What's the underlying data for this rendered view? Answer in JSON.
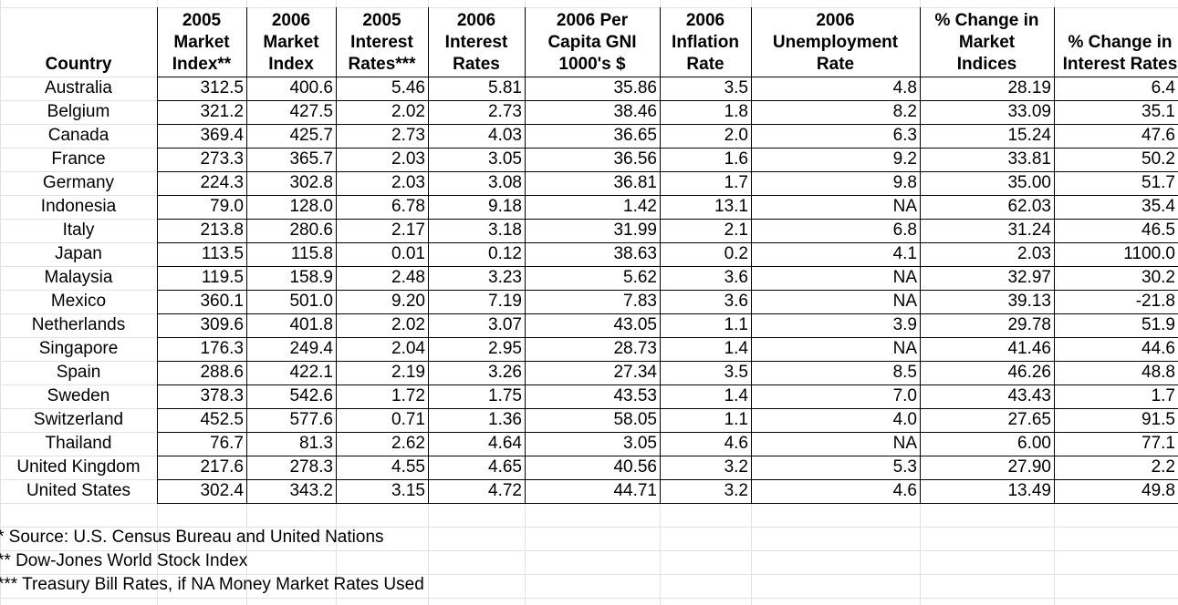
{
  "table": {
    "headers": [
      [
        "Country"
      ],
      [
        "2005",
        "Market",
        "Index**"
      ],
      [
        "2006",
        "Market",
        "Index"
      ],
      [
        "2005",
        "Interest",
        "Rates***"
      ],
      [
        "2006",
        "Interest",
        "Rates"
      ],
      [
        "2006 Per",
        "Capita GNI",
        "1000's $"
      ],
      [
        "2006",
        "Inflation",
        "Rate"
      ],
      [
        "2006",
        "Unemployment",
        "Rate"
      ],
      [
        "% Change in",
        "Market",
        "Indices"
      ],
      [
        "% Change in",
        "Interest Rates"
      ]
    ],
    "rows": [
      [
        "Australia",
        "312.5",
        "400.6",
        "5.46",
        "5.81",
        "35.86",
        "3.5",
        "4.8",
        "28.19",
        "6.4"
      ],
      [
        "Belgium",
        "321.2",
        "427.5",
        "2.02",
        "2.73",
        "38.46",
        "1.8",
        "8.2",
        "33.09",
        "35.1"
      ],
      [
        "Canada",
        "369.4",
        "425.7",
        "2.73",
        "4.03",
        "36.65",
        "2.0",
        "6.3",
        "15.24",
        "47.6"
      ],
      [
        "France",
        "273.3",
        "365.7",
        "2.03",
        "3.05",
        "36.56",
        "1.6",
        "9.2",
        "33.81",
        "50.2"
      ],
      [
        "Germany",
        "224.3",
        "302.8",
        "2.03",
        "3.08",
        "36.81",
        "1.7",
        "9.8",
        "35.00",
        "51.7"
      ],
      [
        "Indonesia",
        "79.0",
        "128.0",
        "6.78",
        "9.18",
        "1.42",
        "13.1",
        "NA",
        "62.03",
        "35.4"
      ],
      [
        "Italy",
        "213.8",
        "280.6",
        "2.17",
        "3.18",
        "31.99",
        "2.1",
        "6.8",
        "31.24",
        "46.5"
      ],
      [
        "Japan",
        "113.5",
        "115.8",
        "0.01",
        "0.12",
        "38.63",
        "0.2",
        "4.1",
        "2.03",
        "1100.0"
      ],
      [
        "Malaysia",
        "119.5",
        "158.9",
        "2.48",
        "3.23",
        "5.62",
        "3.6",
        "NA",
        "32.97",
        "30.2"
      ],
      [
        "Mexico",
        "360.1",
        "501.0",
        "9.20",
        "7.19",
        "7.83",
        "3.6",
        "NA",
        "39.13",
        "-21.8"
      ],
      [
        "Netherlands",
        "309.6",
        "401.8",
        "2.02",
        "3.07",
        "43.05",
        "1.1",
        "3.9",
        "29.78",
        "51.9"
      ],
      [
        "Singapore",
        "176.3",
        "249.4",
        "2.04",
        "2.95",
        "28.73",
        "1.4",
        "NA",
        "41.46",
        "44.6"
      ],
      [
        "Spain",
        "288.6",
        "422.1",
        "2.19",
        "3.26",
        "27.34",
        "3.5",
        "8.5",
        "46.26",
        "48.8"
      ],
      [
        "Sweden",
        "378.3",
        "542.6",
        "1.72",
        "1.75",
        "43.53",
        "1.4",
        "7.0",
        "43.43",
        "1.7"
      ],
      [
        "Switzerland",
        "452.5",
        "577.6",
        "0.71",
        "1.36",
        "58.05",
        "1.1",
        "4.0",
        "27.65",
        "91.5"
      ],
      [
        "Thailand",
        "76.7",
        "81.3",
        "2.62",
        "4.64",
        "3.05",
        "4.6",
        "NA",
        "6.00",
        "77.1"
      ],
      [
        "United Kingdom",
        "217.6",
        "278.3",
        "4.55",
        "4.65",
        "40.56",
        "3.2",
        "5.3",
        "27.90",
        "2.2"
      ],
      [
        "United States",
        "302.4",
        "343.2",
        "3.15",
        "4.72",
        "44.71",
        "3.2",
        "4.6",
        "13.49",
        "49.8"
      ]
    ]
  },
  "footnotes": [
    "* Source: U.S. Census Bureau and United Nations",
    "** Dow-Jones World Stock Index",
    "*** Treasury Bill Rates, if NA Money Market Rates Used"
  ]
}
